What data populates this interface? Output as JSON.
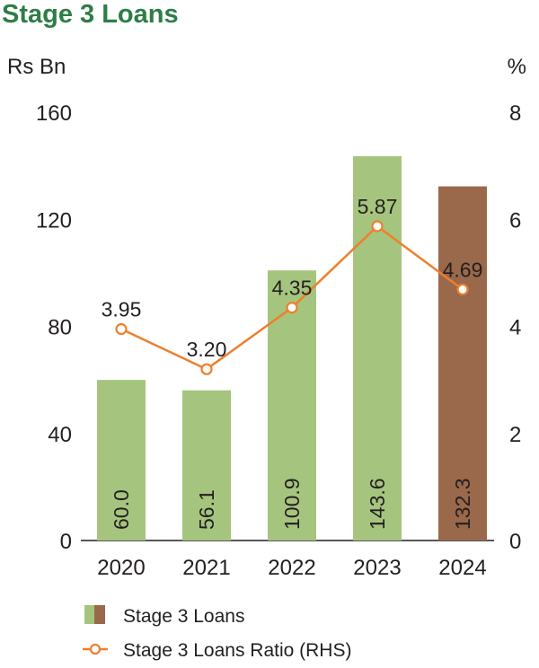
{
  "title": "Stage 3 Loans",
  "chart_data": {
    "type": "bar",
    "categories": [
      "2020",
      "2021",
      "2022",
      "2023",
      "2024"
    ],
    "series": [
      {
        "name": "Stage 3 Loans",
        "kind": "bar",
        "axis": "left",
        "values": [
          60.0,
          56.1,
          100.9,
          143.6,
          132.3
        ],
        "labels": [
          "60.0",
          "56.1",
          "100.9",
          "143.6",
          "132.3"
        ],
        "colors": [
          "#a5c57e",
          "#a5c57e",
          "#a5c57e",
          "#a5c57e",
          "#9a684b"
        ]
      },
      {
        "name": "Stage 3 Loans Ratio (RHS)",
        "kind": "line",
        "axis": "right",
        "values": [
          3.95,
          3.2,
          4.35,
          5.87,
          4.69
        ],
        "labels": [
          "3.95",
          "3.20",
          "4.35",
          "5.87",
          "4.69"
        ],
        "color": "#ee7f2d"
      }
    ],
    "ylabel_left": "Rs Bn",
    "ylabel_right": "%",
    "ylim_left": [
      0,
      160
    ],
    "ylim_right": [
      0,
      8
    ],
    "yticks_left": [
      "0",
      "40",
      "80",
      "120",
      "160"
    ],
    "yticks_right": [
      "0",
      "2",
      "4",
      "6",
      "8"
    ],
    "grid": false,
    "legend_position": "bottom-left"
  }
}
